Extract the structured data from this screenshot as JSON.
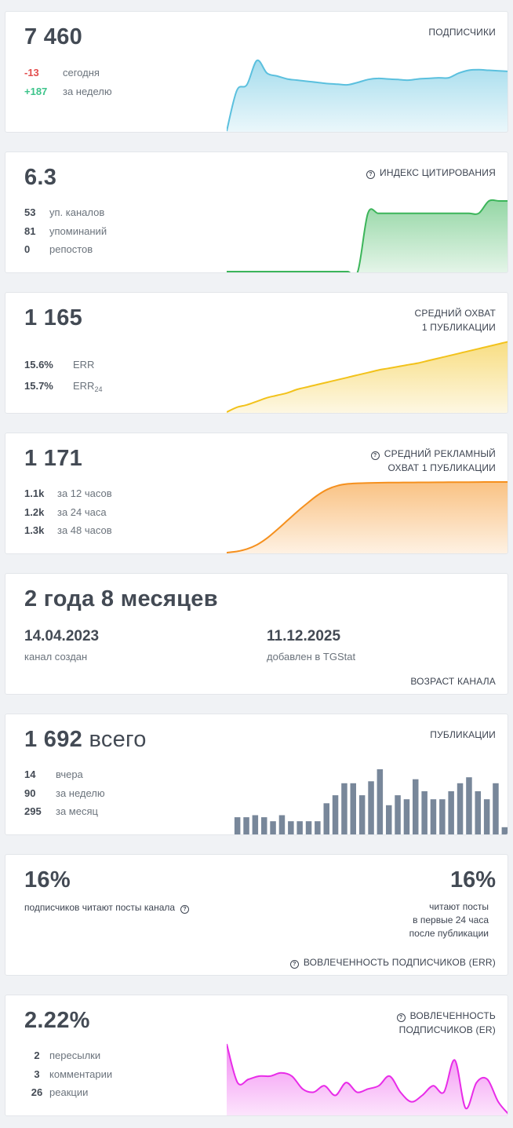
{
  "subscribers": {
    "value": "7 460",
    "title": "ПОДПИСЧИКИ",
    "stats": [
      {
        "value": "-13",
        "label": "сегодня"
      },
      {
        "value": "+187",
        "label": "за неделю"
      }
    ],
    "color": "#5bc0de"
  },
  "citation": {
    "value": "6.3",
    "title": "ИНДЕКС ЦИТИРОВАНИЯ",
    "stats": [
      {
        "value": "53",
        "label": "уп. каналов"
      },
      {
        "value": "81",
        "label": "упоминаний"
      },
      {
        "value": "0",
        "label": "репостов"
      }
    ],
    "color": "#3cb55a"
  },
  "reach": {
    "value": "1 165",
    "title_line1": "СРЕДНИЙ ОХВАТ",
    "title_line2": "1 ПУБЛИКАЦИИ",
    "stats": [
      {
        "value": "15.6%",
        "label": "ERR"
      },
      {
        "value": "15.7%",
        "label": "ERR",
        "sub": "24"
      }
    ],
    "color": "#f2c21b"
  },
  "ad_reach": {
    "value": "1 171",
    "title_line1": "СРЕДНИЙ РЕКЛАМНЫЙ",
    "title_line2": "ОХВАТ 1 ПУБЛИКАЦИИ",
    "stats": [
      {
        "value": "1.1k",
        "label": "за 12 часов"
      },
      {
        "value": "1.2k",
        "label": "за 24 часа"
      },
      {
        "value": "1.3k",
        "label": "за 48 часов"
      }
    ],
    "color": "#f5901e"
  },
  "age": {
    "value": "2 года 8 месяцев",
    "created_date": "14.04.2023",
    "created_label": "канал создан",
    "added_date": "11.12.2025",
    "added_label": "добавлен в TGStat",
    "title": "ВОЗРАСТ КАНАЛА"
  },
  "publications": {
    "value": "1 692",
    "value_suffix": "всего",
    "title": "ПУБЛИКАЦИИ",
    "stats": [
      {
        "value": "14",
        "label": "вчера"
      },
      {
        "value": "90",
        "label": "за неделю"
      },
      {
        "value": "295",
        "label": "за месяц"
      }
    ],
    "color": "#78879a"
  },
  "err": {
    "left_value": "16%",
    "left_label": "подписчиков читают посты канала",
    "right_value": "16%",
    "right_line1": "читают посты",
    "right_line2": "в первые 24 часа",
    "right_line3": "после публикации",
    "title": "ВОВЛЕЧЕННОСТЬ ПОДПИСЧИКОВ (ERR)"
  },
  "er": {
    "value": "2.22%",
    "title_line1": "ВОВЛЕЧЕННОСТЬ",
    "title_line2": "ПОДПИСЧИКОВ (ER)",
    "stats": [
      {
        "value": "2",
        "label": "пересылки"
      },
      {
        "value": "3",
        "label": "комментарии"
      },
      {
        "value": "26",
        "label": "реакции"
      }
    ],
    "color": "#e82ce8"
  },
  "chart_data": [
    {
      "type": "area",
      "series": [
        {
          "values": [
            6200,
            6900,
            7000,
            7420,
            7200,
            7150,
            7100,
            7080,
            7060,
            7040,
            7020,
            7010,
            7000,
            7040,
            7090,
            7110,
            7100,
            7090,
            7080,
            7100,
            7110,
            7120,
            7120,
            7200,
            7250,
            7260,
            7250,
            7240,
            7230
          ]
        }
      ]
    },
    {
      "type": "area",
      "series": [
        {
          "values": [
            0,
            0,
            0,
            0,
            0,
            0,
            0,
            0,
            0,
            0,
            0,
            0,
            0,
            0,
            5.2,
            5.2,
            5.2,
            5.2,
            5.2,
            5.2,
            5.2,
            5.2,
            5.2,
            5.2,
            5.2,
            5.2,
            6.3,
            6.3,
            6.3
          ]
        }
      ]
    },
    {
      "type": "area",
      "series": [
        {
          "values": [
            0,
            8,
            12,
            18,
            24,
            28,
            32,
            38,
            42,
            46,
            50,
            54,
            58,
            62,
            66,
            70,
            73,
            76,
            79,
            82,
            86,
            90,
            94,
            98,
            102,
            106,
            110,
            114,
            118
          ]
        }
      ]
    },
    {
      "type": "area",
      "series": [
        {
          "values": [
            0,
            20,
            60,
            130,
            240,
            380,
            530,
            680,
            820,
            950,
            1050,
            1110,
            1140,
            1150,
            1155,
            1158,
            1160,
            1162,
            1163,
            1164,
            1165,
            1166,
            1167,
            1168,
            1169,
            1170,
            1171,
            1171,
            1171
          ]
        }
      ]
    },
    {
      "type": "bar",
      "series": [
        {
          "values": [
            9,
            9,
            10,
            9,
            7,
            10,
            7,
            7,
            7,
            7,
            16,
            20,
            26,
            26,
            20,
            27,
            33,
            15,
            20,
            18,
            28,
            22,
            18,
            18,
            22,
            26,
            29,
            22,
            18,
            26,
            4
          ]
        }
      ]
    },
    {
      "type": "area",
      "series": [
        {
          "values": [
            2.6,
            2.0,
            2.05,
            2.1,
            2.1,
            2.15,
            2.1,
            1.9,
            1.85,
            1.95,
            1.8,
            2.0,
            1.85,
            1.9,
            1.95,
            2.1,
            1.85,
            1.7,
            1.8,
            1.95,
            1.85,
            2.35,
            1.6,
            2.0,
            2.05,
            1.7,
            1.5
          ]
        }
      ]
    }
  ]
}
